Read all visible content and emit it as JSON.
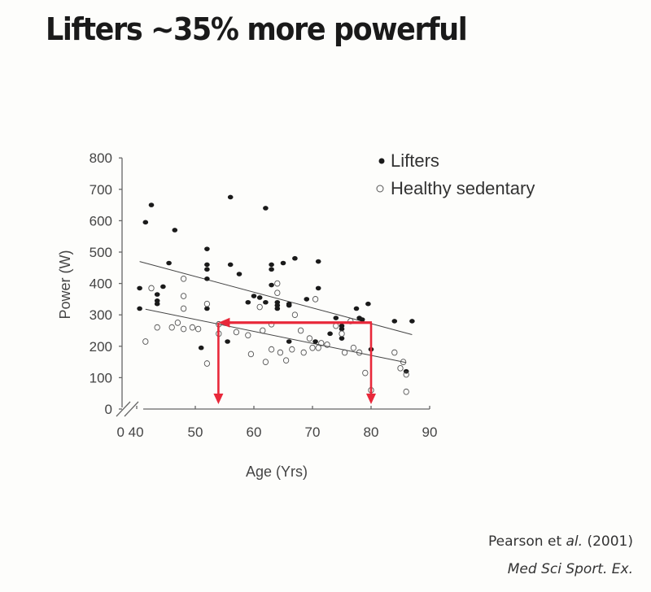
{
  "slide": {
    "title": "Lifters ~35% more powerful",
    "citation_authors": "Pearson et ",
    "citation_etal": "al.",
    "citation_year": " (2001)",
    "citation_journal": "Med Sci Sport. Ex."
  },
  "chart_data": {
    "type": "scatter",
    "title": "",
    "xlabel": "Age (Yrs)",
    "ylabel": "Power (W)",
    "xlim": [
      40,
      90
    ],
    "ylim": [
      0,
      800
    ],
    "x_ticks": [
      40,
      50,
      60,
      70,
      80,
      90
    ],
    "x_tick_labels": [
      "0 40",
      "50",
      "60",
      "70",
      "80",
      "90"
    ],
    "y_ticks": [
      0,
      100,
      200,
      300,
      400,
      500,
      600,
      700,
      800
    ],
    "axis_break": true,
    "grid": false,
    "legend": {
      "position": "top-right",
      "entries": [
        {
          "label": "Lifters",
          "marker": "filled-circle"
        },
        {
          "label": "Healthy sedentary",
          "marker": "open-circle"
        }
      ]
    },
    "series": [
      {
        "name": "Lifters",
        "marker": "filled",
        "points": [
          [
            40.5,
            385
          ],
          [
            40.5,
            320
          ],
          [
            41.5,
            595
          ],
          [
            42.5,
            650
          ],
          [
            43.5,
            365
          ],
          [
            43.5,
            345
          ],
          [
            43.5,
            335
          ],
          [
            44.5,
            390
          ],
          [
            45.5,
            465
          ],
          [
            46.5,
            570
          ],
          [
            51,
            195
          ],
          [
            52,
            510
          ],
          [
            52,
            460
          ],
          [
            52,
            445
          ],
          [
            52,
            415
          ],
          [
            52,
            320
          ],
          [
            55.5,
            215
          ],
          [
            56,
            675
          ],
          [
            56,
            460
          ],
          [
            57.5,
            430
          ],
          [
            59,
            340
          ],
          [
            60,
            360
          ],
          [
            61,
            355
          ],
          [
            62,
            640
          ],
          [
            62,
            340
          ],
          [
            63,
            460
          ],
          [
            63,
            445
          ],
          [
            63,
            395
          ],
          [
            64,
            340
          ],
          [
            64,
            330
          ],
          [
            64,
            320
          ],
          [
            65,
            465
          ],
          [
            66,
            335
          ],
          [
            66,
            330
          ],
          [
            66,
            215
          ],
          [
            67,
            480
          ],
          [
            69,
            350
          ],
          [
            70.5,
            215
          ],
          [
            71,
            470
          ],
          [
            71,
            385
          ],
          [
            73,
            240
          ],
          [
            74,
            290
          ],
          [
            75,
            265
          ],
          [
            75,
            255
          ],
          [
            75,
            225
          ],
          [
            77.5,
            320
          ],
          [
            78,
            290
          ],
          [
            78.5,
            285
          ],
          [
            79.5,
            335
          ],
          [
            80,
            190
          ],
          [
            84,
            280
          ],
          [
            86,
            120
          ],
          [
            87,
            280
          ]
        ]
      },
      {
        "name": "Healthy sedentary",
        "marker": "open",
        "points": [
          [
            41.5,
            215
          ],
          [
            42.5,
            385
          ],
          [
            43.5,
            260
          ],
          [
            46,
            260
          ],
          [
            47,
            275
          ],
          [
            48,
            255
          ],
          [
            48,
            320
          ],
          [
            48,
            360
          ],
          [
            48,
            415
          ],
          [
            49.5,
            260
          ],
          [
            50.5,
            255
          ],
          [
            52,
            335
          ],
          [
            52,
            145
          ],
          [
            54,
            270
          ],
          [
            54,
            240
          ],
          [
            57,
            245
          ],
          [
            59,
            235
          ],
          [
            59.5,
            175
          ],
          [
            61,
            325
          ],
          [
            61.5,
            250
          ],
          [
            62,
            150
          ],
          [
            63,
            270
          ],
          [
            63,
            190
          ],
          [
            64,
            400
          ],
          [
            64,
            370
          ],
          [
            64.5,
            180
          ],
          [
            65.5,
            155
          ],
          [
            66.5,
            190
          ],
          [
            67,
            300
          ],
          [
            68,
            250
          ],
          [
            68.5,
            180
          ],
          [
            69.5,
            225
          ],
          [
            70,
            195
          ],
          [
            70.5,
            350
          ],
          [
            71,
            195
          ],
          [
            71.5,
            210
          ],
          [
            72.5,
            205
          ],
          [
            74,
            265
          ],
          [
            75,
            240
          ],
          [
            75.5,
            180
          ],
          [
            76.5,
            280
          ],
          [
            77,
            195
          ],
          [
            78,
            180
          ],
          [
            79,
            115
          ],
          [
            80,
            60
          ],
          [
            84,
            180
          ],
          [
            85,
            130
          ],
          [
            85.5,
            150
          ],
          [
            86,
            110
          ],
          [
            86,
            55
          ]
        ]
      }
    ],
    "trendlines": [
      {
        "name": "Lifters trend",
        "from": [
          40.5,
          470
        ],
        "to": [
          87,
          237
        ]
      },
      {
        "name": "Sedentary trend",
        "from": [
          41.5,
          318
        ],
        "to": [
          86,
          148
        ]
      }
    ],
    "annotations": [
      {
        "type": "arrow-path",
        "color": "#e8283a",
        "description": "From age 80 at ~270 W (lifters line) horizontally left to ~54 yrs on sedentary line, then arrows down to x-axis at 54 and 80",
        "points": [
          [
            80,
            270
          ],
          [
            54.5,
            270
          ]
        ],
        "down_arrows_at_x": [
          54,
          80
        ]
      }
    ]
  }
}
